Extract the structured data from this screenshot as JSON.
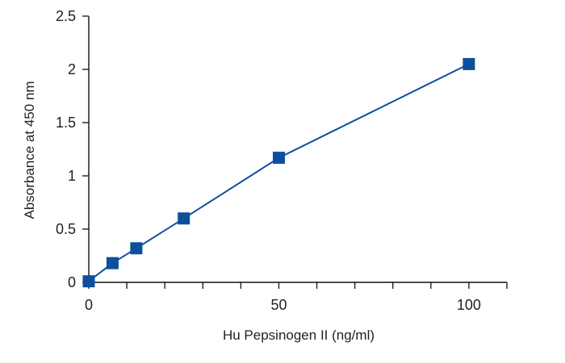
{
  "chart_data": {
    "type": "line",
    "title": "",
    "xlabel": "Hu Pepsinogen II (ng/ml)",
    "ylabel": "Absorbance at 450 nm",
    "xlim": [
      0,
      110
    ],
    "ylim": [
      0,
      2.5
    ],
    "x_tick_values": [
      0,
      10,
      20,
      30,
      40,
      50,
      60,
      70,
      80,
      90,
      100,
      110
    ],
    "x_tick_labels": [
      {
        "value": 0,
        "label": "0"
      },
      {
        "value": 50,
        "label": "50"
      },
      {
        "value": 100,
        "label": "100"
      }
    ],
    "y_ticks": [
      {
        "value": 0,
        "label": "0"
      },
      {
        "value": 0.5,
        "label": "0.5"
      },
      {
        "value": 1,
        "label": "1"
      },
      {
        "value": 1.5,
        "label": "1.5"
      },
      {
        "value": 2,
        "label": "2"
      },
      {
        "value": 2.5,
        "label": "2.5"
      }
    ],
    "grid": false,
    "legend": "none",
    "series": [
      {
        "x": [
          0,
          6.25,
          12.5,
          25,
          50,
          100
        ],
        "y": [
          0.01,
          0.18,
          0.32,
          0.6,
          1.17,
          2.05
        ],
        "color": "#0d4f9c",
        "marker": "square"
      }
    ]
  }
}
